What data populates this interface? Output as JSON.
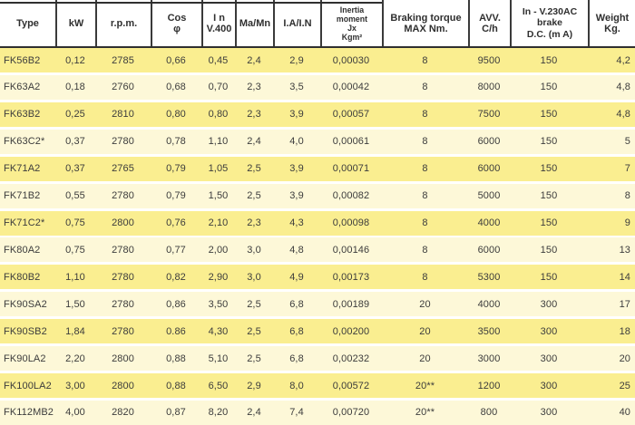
{
  "table": {
    "columns": [
      "Type",
      "kW",
      "r.p.m.",
      "Cos\nφ",
      "I n\nV.400",
      "Ma/Mn",
      "I.A/I.N",
      "Inertia\nmoment\nJx\nKgm²",
      "Braking torque\nMAX Nm.",
      "AVV.\nC/h",
      "In - V.230AC\nbrake\nD.C. (m A)",
      "Weight\nKg."
    ],
    "rows": [
      [
        "FK56B2",
        "0,12",
        "2785",
        "0,66",
        "0,45",
        "2,4",
        "2,9",
        "0,00030",
        "8",
        "9500",
        "150",
        "4,2"
      ],
      [
        "FK63A2",
        "0,18",
        "2760",
        "0,68",
        "0,70",
        "2,3",
        "3,5",
        "0,00042",
        "8",
        "8000",
        "150",
        "4,8"
      ],
      [
        "FK63B2",
        "0,25",
        "2810",
        "0,80",
        "0,80",
        "2,3",
        "3,9",
        "0,00057",
        "8",
        "7500",
        "150",
        "4,8"
      ],
      [
        "FK63C2*",
        "0,37",
        "2780",
        "0,78",
        "1,10",
        "2,4",
        "4,0",
        "0,00061",
        "8",
        "6000",
        "150",
        "5"
      ],
      [
        "FK71A2",
        "0,37",
        "2765",
        "0,79",
        "1,05",
        "2,5",
        "3,9",
        "0,00071",
        "8",
        "6000",
        "150",
        "7"
      ],
      [
        "FK71B2",
        "0,55",
        "2780",
        "0,79",
        "1,50",
        "2,5",
        "3,9",
        "0,00082",
        "8",
        "5000",
        "150",
        "8"
      ],
      [
        "FK71C2*",
        "0,75",
        "2800",
        "0,76",
        "2,10",
        "2,3",
        "4,3",
        "0,00098",
        "8",
        "4000",
        "150",
        "9"
      ],
      [
        "FK80A2",
        "0,75",
        "2780",
        "0,77",
        "2,00",
        "3,0",
        "4,8",
        "0,00146",
        "8",
        "6000",
        "150",
        "13"
      ],
      [
        "FK80B2",
        "1,10",
        "2780",
        "0,82",
        "2,90",
        "3,0",
        "4,9",
        "0,00173",
        "8",
        "5300",
        "150",
        "14"
      ],
      [
        "FK90SA2",
        "1,50",
        "2780",
        "0,86",
        "3,50",
        "2,5",
        "6,8",
        "0,00189",
        "20",
        "4000",
        "300",
        "17"
      ],
      [
        "FK90SB2",
        "1,84",
        "2780",
        "0.86",
        "4,30",
        "2,5",
        "6,8",
        "0,00200",
        "20",
        "3500",
        "300",
        "18"
      ],
      [
        "FK90LA2",
        "2,20",
        "2800",
        "0,88",
        "5,10",
        "2,5",
        "6,8",
        "0,00232",
        "20",
        "3000",
        "300",
        "20"
      ],
      [
        "FK100LA2",
        "3,00",
        "2800",
        "0,88",
        "6,50",
        "2,9",
        "8,0",
        "0,00572",
        "20**",
        "1200",
        "300",
        "25"
      ],
      [
        "FK112MB2",
        "4,00",
        "2820",
        "0,87",
        "8,20",
        "2,4",
        "7,4",
        "0,00720",
        "20**",
        "800",
        "300",
        "40"
      ]
    ],
    "colors": {
      "row_yellow": "#faee90",
      "row_cream": "#fdf8d8",
      "border": "#2f2f2f",
      "header_text": "#2f2f2f",
      "data_text": "#3c3c3c"
    }
  }
}
